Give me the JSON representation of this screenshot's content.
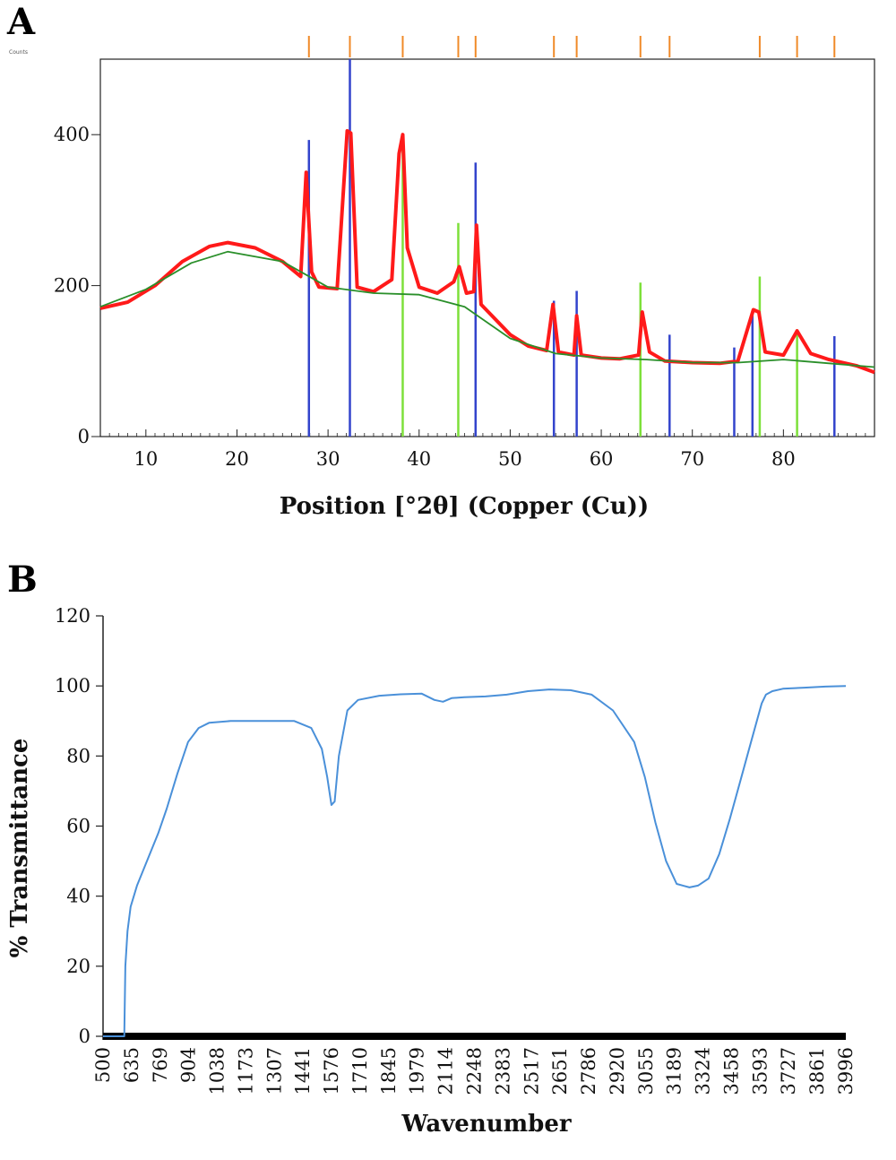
{
  "panels": {
    "a_label": "A",
    "b_label": "B"
  },
  "chart_data": [
    {
      "type": "line",
      "panel": "A",
      "xlabel": "Position [°2θ] (Copper (Cu))",
      "ylabel": "",
      "corner_label": "Counts",
      "xlim": [
        5,
        90
      ],
      "ylim": [
        0,
        500
      ],
      "x_ticks": [
        10,
        20,
        30,
        40,
        50,
        60,
        70,
        80
      ],
      "y_ticks": [
        0,
        200,
        400
      ],
      "grid": false,
      "colors": {
        "observed": "#ff1a1a",
        "background": "#2a8f2a",
        "phase1": "#3344cc",
        "phase2": "#7de03a",
        "markers": "#f08a28"
      },
      "series": [
        {
          "kind": "observed",
          "x": [
            5,
            8,
            11,
            14,
            17,
            19,
            22,
            25,
            27,
            27.6,
            28.2,
            29,
            31,
            32.1,
            32.5,
            33.2,
            35,
            37,
            37.8,
            38.2,
            38.7,
            40,
            42,
            43.8,
            44.4,
            45.2,
            46,
            46.3,
            46.8,
            48,
            50,
            52,
            54,
            54.7,
            55.3,
            57,
            57.3,
            57.8,
            60,
            62,
            64.1,
            64.5,
            65.3,
            67,
            70,
            73,
            75,
            76.7,
            77.3,
            78,
            80,
            81.5,
            83,
            85,
            88,
            90
          ],
          "y": [
            170,
            178,
            200,
            232,
            252,
            257,
            250,
            232,
            212,
            350,
            218,
            198,
            196,
            405,
            402,
            198,
            192,
            208,
            375,
            400,
            250,
            198,
            190,
            205,
            225,
            190,
            192,
            280,
            175,
            160,
            135,
            120,
            114,
            175,
            112,
            108,
            160,
            108,
            104,
            103,
            108,
            165,
            112,
            100,
            98,
            97,
            100,
            168,
            165,
            112,
            108,
            140,
            110,
            102,
            94,
            85
          ]
        },
        {
          "kind": "background",
          "x": [
            5,
            10,
            15,
            19,
            25,
            30,
            35,
            40,
            45,
            50,
            55,
            60,
            65,
            70,
            75,
            80,
            85,
            90
          ],
          "y": [
            172,
            195,
            230,
            245,
            232,
            198,
            190,
            188,
            172,
            130,
            110,
            104,
            102,
            98,
            98,
            102,
            97,
            92
          ]
        }
      ],
      "phase_lines": [
        {
          "phase": "phase1",
          "x": [
            27.9,
            32.4,
            46.2,
            54.8,
            57.3,
            67.5,
            74.6,
            76.6,
            85.6
          ],
          "y": [
            393,
            500,
            363,
            180,
            193,
            135,
            118,
            166,
            133
          ]
        },
        {
          "phase": "phase2",
          "x": [
            38.2,
            44.3,
            64.3,
            77.4,
            81.5
          ],
          "y": [
            380,
            283,
            204,
            212,
            142
          ]
        }
      ],
      "reference_markers": [
        27.9,
        32.4,
        38.2,
        44.3,
        46.2,
        54.8,
        57.3,
        64.3,
        67.5,
        77.4,
        81.5,
        85.6
      ]
    },
    {
      "type": "line",
      "panel": "B",
      "xlabel": "Wavenumber",
      "ylabel": "% Transmittance",
      "xlim": [
        500,
        3996
      ],
      "ylim": [
        0,
        120
      ],
      "x_ticks": [
        "500",
        "635",
        "769",
        "904",
        "1038",
        "1173",
        "1307",
        "1441",
        "1576",
        "1710",
        "1845",
        "1979",
        "2114",
        "2248",
        "2383",
        "2517",
        "2651",
        "2786",
        "2920",
        "3055",
        "3189",
        "3324",
        "3458",
        "3593",
        "3727",
        "3861",
        "3996"
      ],
      "y_ticks": [
        0,
        20,
        40,
        60,
        80,
        100,
        120
      ],
      "grid": false,
      "colors": {
        "line": "#4a90d9",
        "baseline": "#000000"
      },
      "series": [
        {
          "name": "",
          "x": [
            500,
            590,
            600,
            605,
            615,
            630,
            660,
            700,
            760,
            800,
            850,
            900,
            950,
            1000,
            1100,
            1200,
            1300,
            1400,
            1480,
            1530,
            1555,
            1575,
            1590,
            1610,
            1650,
            1700,
            1800,
            1900,
            2000,
            2060,
            2100,
            2140,
            2200,
            2300,
            2400,
            2500,
            2600,
            2700,
            2800,
            2900,
            3000,
            3050,
            3100,
            3150,
            3200,
            3260,
            3300,
            3350,
            3400,
            3450,
            3500,
            3550,
            3600,
            3620,
            3650,
            3700,
            3800,
            3900,
            3996
          ],
          "y": [
            0,
            0,
            0,
            20,
            30,
            37,
            43,
            49,
            58,
            65,
            75,
            84,
            88,
            89.5,
            90,
            90,
            90,
            90,
            88,
            82,
            74,
            66,
            67,
            80,
            93,
            96,
            97.2,
            97.6,
            97.8,
            96,
            95.5,
            96.5,
            96.8,
            97,
            97.5,
            98.5,
            99,
            98.8,
            97.5,
            93,
            84,
            74,
            61,
            50,
            43.5,
            42.5,
            43,
            45,
            52,
            62,
            73,
            84,
            95,
            97.5,
            98.5,
            99.2,
            99.5,
            99.8,
            100
          ]
        }
      ]
    }
  ]
}
